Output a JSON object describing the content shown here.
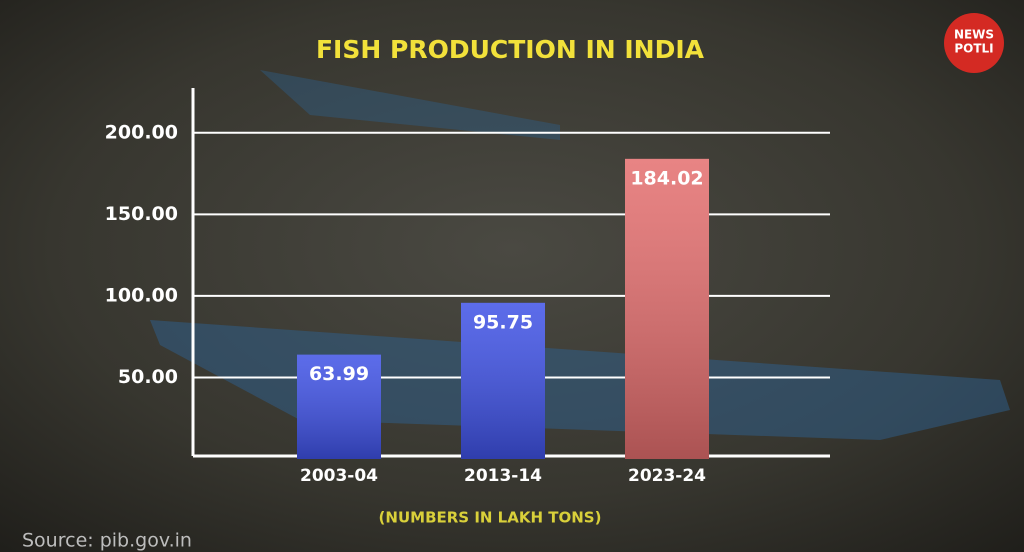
{
  "chart_data": {
    "type": "bar",
    "title": "FISH PRODUCTION IN INDIA",
    "subtitle": "(NUMBERS IN LAKH TONS)",
    "source": "Source: pib.gov.in",
    "logo": [
      "NEWS",
      "POTLI"
    ],
    "categories": [
      "2003-04",
      "2013-14",
      "2023-24"
    ],
    "values": [
      63.99,
      95.75,
      184.02
    ],
    "colors": [
      "#3f52e6",
      "#3f52e6",
      "#e46e6e"
    ],
    "ylim": [
      0,
      225
    ],
    "yticks": [
      {
        "value": 50,
        "label": "50.00"
      },
      {
        "value": 100,
        "label": "100.00"
      },
      {
        "value": 150,
        "label": "150.00"
      },
      {
        "value": 200,
        "label": "200.00"
      }
    ],
    "grid": true
  }
}
